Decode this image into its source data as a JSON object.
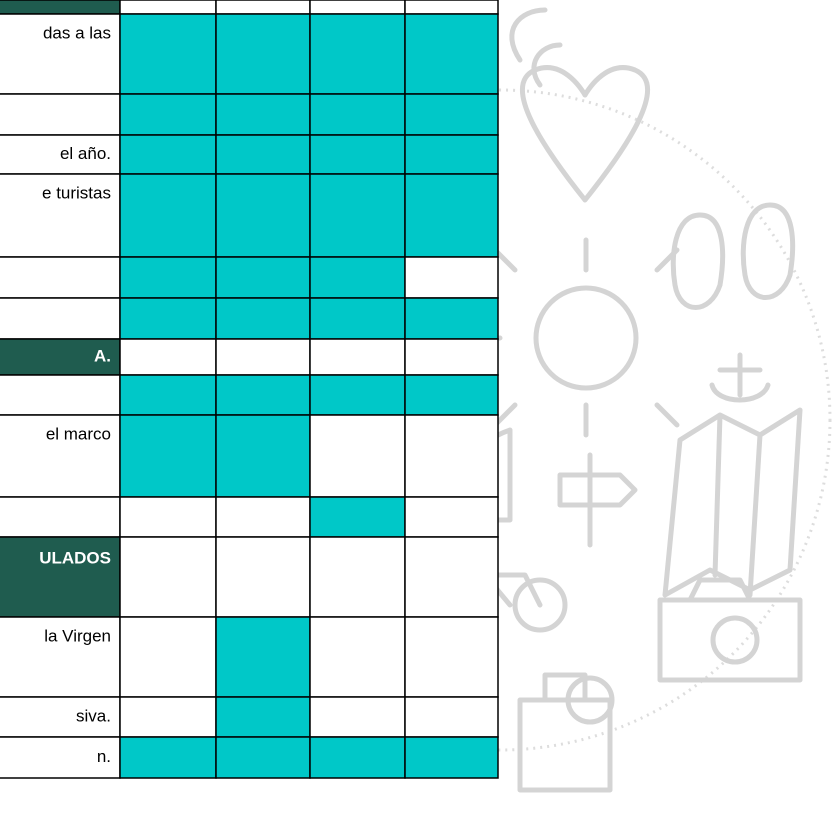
{
  "table": {
    "columns": 4,
    "rows": [
      {
        "kind": "section",
        "height": 14
      },
      {
        "text": "das a las",
        "cells": [
          true,
          true,
          true,
          true
        ],
        "height": 80
      },
      {
        "cells": [
          true,
          true,
          true,
          true
        ],
        "height": 41
      },
      {
        "text": "el año.",
        "cells": [
          true,
          true,
          true,
          true
        ],
        "height": 39
      },
      {
        "text": "e turistas",
        "cells": [
          true,
          true,
          true,
          true
        ],
        "height": 83
      },
      {
        "cells": [
          true,
          true,
          true,
          false
        ],
        "height": 41
      },
      {
        "cells": [
          true,
          true,
          true,
          true
        ],
        "height": 41
      },
      {
        "kind": "section",
        "text": "A.",
        "height": 36
      },
      {
        "cells": [
          true,
          true,
          true,
          true
        ],
        "height": 40
      },
      {
        "text": "el marco",
        "cells": [
          true,
          true,
          false,
          false
        ],
        "height": 82
      },
      {
        "cells": [
          false,
          false,
          true,
          false
        ],
        "height": 40
      },
      {
        "kind": "section",
        "text": "ULADOS",
        "height": 80
      },
      {
        "text": "la Virgen",
        "cells": [
          false,
          true,
          false,
          false
        ],
        "height": 80
      },
      {
        "text": "siva.",
        "cells": [
          false,
          true,
          false,
          false
        ],
        "height": 40
      },
      {
        "text": "n.",
        "cells": [
          true,
          true,
          true,
          true
        ],
        "height": 41
      }
    ]
  }
}
